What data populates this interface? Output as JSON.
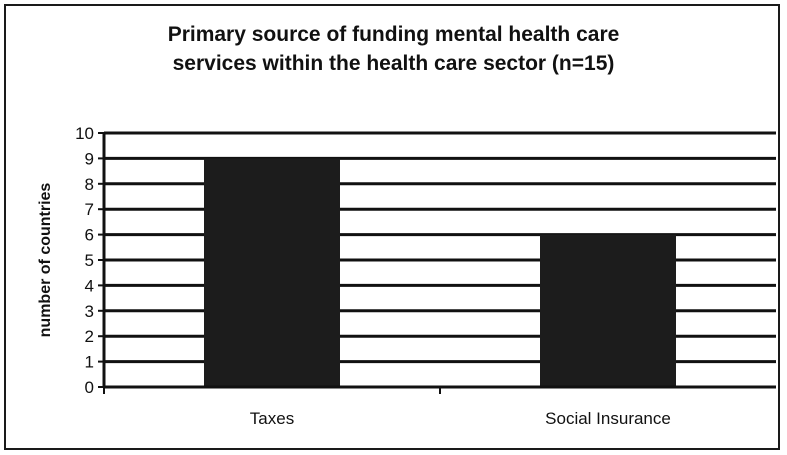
{
  "chart_data": {
    "type": "bar",
    "title_lines": [
      "Primary source of funding mental health care",
      "services within the health care sector (n=15)"
    ],
    "xlabel": "",
    "ylabel": "number of countries",
    "categories": [
      "Taxes",
      "Social Insurance"
    ],
    "values": [
      9,
      6
    ],
    "ylim": [
      0,
      10
    ],
    "yticks": [
      "0",
      "1",
      "2",
      "3",
      "4",
      "5",
      "6",
      "7",
      "8",
      "9",
      "10"
    ],
    "grid": true,
    "legend": "none",
    "colors": {
      "bar": "#1c1c1c",
      "grid": "#111111",
      "background": "#ffffff"
    }
  }
}
